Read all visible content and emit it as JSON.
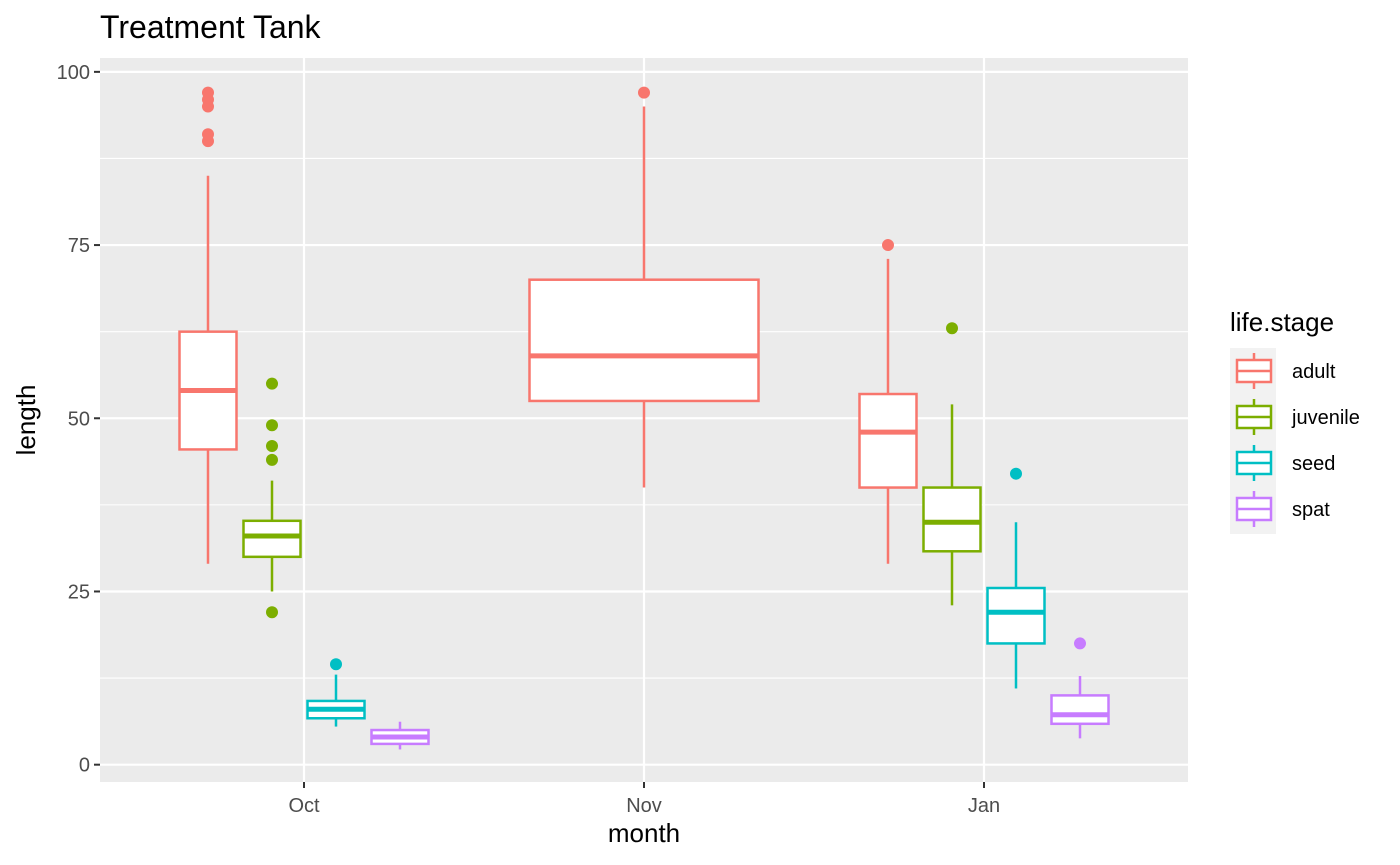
{
  "chart_data": {
    "type": "boxplot",
    "title": "Treatment Tank",
    "xlabel": "month",
    "ylabel": "length",
    "categories": [
      "Oct",
      "Nov",
      "Jan"
    ],
    "ylim": [
      -2.5,
      102
    ],
    "yticks": [
      0,
      25,
      50,
      75,
      100
    ],
    "grid": true,
    "legend": {
      "title": "life.stage",
      "position": "right",
      "entries": [
        {
          "name": "adult",
          "color": "#F8766D"
        },
        {
          "name": "juvenile",
          "color": "#7CAE00"
        },
        {
          "name": "seed",
          "color": "#00BFC4"
        },
        {
          "name": "spat",
          "color": "#C77CFF"
        }
      ]
    },
    "series": [
      {
        "name": "adult",
        "color": "#F8766D",
        "boxes": [
          {
            "category": "Oct",
            "lower_whisker": 29,
            "q1": 45.5,
            "median": 54,
            "q3": 62.5,
            "upper_whisker": 85,
            "outliers": [
              90,
              91,
              95,
              96,
              97
            ]
          },
          {
            "category": "Nov",
            "lower_whisker": 40,
            "q1": 52.5,
            "median": 59,
            "q3": 70,
            "upper_whisker": 95,
            "outliers": [
              97
            ]
          },
          {
            "category": "Jan",
            "lower_whisker": 29,
            "q1": 40,
            "median": 48,
            "q3": 53.5,
            "upper_whisker": 73,
            "outliers": [
              75
            ]
          }
        ]
      },
      {
        "name": "juvenile",
        "color": "#7CAE00",
        "boxes": [
          {
            "category": "Oct",
            "lower_whisker": 25,
            "q1": 30,
            "median": 33,
            "q3": 35.2,
            "upper_whisker": 41,
            "outliers": [
              22,
              44,
              46,
              49,
              55
            ]
          },
          {
            "category": "Jan",
            "lower_whisker": 23,
            "q1": 30.8,
            "median": 35,
            "q3": 40,
            "upper_whisker": 52,
            "outliers": [
              63
            ]
          }
        ]
      },
      {
        "name": "seed",
        "color": "#00BFC4",
        "boxes": [
          {
            "category": "Oct",
            "lower_whisker": 5.5,
            "q1": 6.7,
            "median": 8,
            "q3": 9.2,
            "upper_whisker": 13,
            "outliers": [
              14.5
            ]
          },
          {
            "category": "Jan",
            "lower_whisker": 11,
            "q1": 17.5,
            "median": 22,
            "q3": 25.5,
            "upper_whisker": 35,
            "outliers": [
              42
            ]
          }
        ]
      },
      {
        "name": "spat",
        "color": "#C77CFF",
        "boxes": [
          {
            "category": "Oct",
            "lower_whisker": 2.2,
            "q1": 3,
            "median": 4,
            "q3": 5,
            "upper_whisker": 6.2,
            "outliers": []
          },
          {
            "category": "Jan",
            "lower_whisker": 3.8,
            "q1": 5.9,
            "median": 7.2,
            "q3": 10,
            "upper_whisker": 12.8,
            "outliers": [
              17.5
            ]
          }
        ]
      }
    ]
  }
}
